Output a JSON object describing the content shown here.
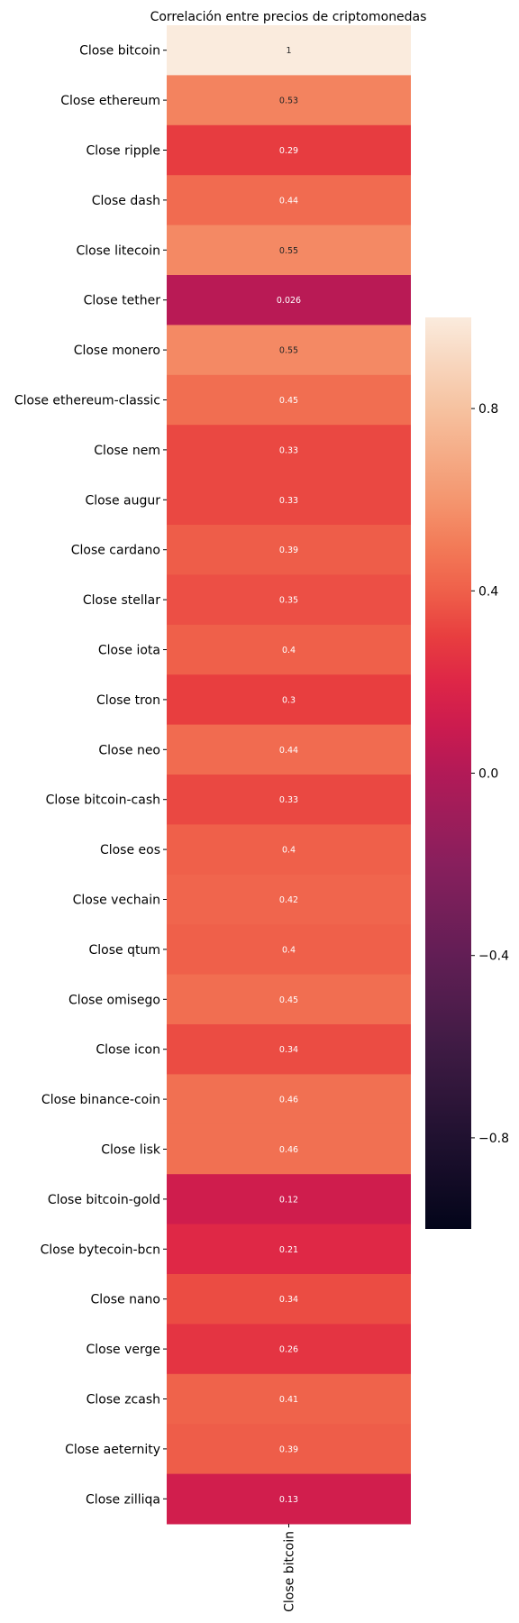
{
  "chart_data": {
    "type": "heatmap",
    "title": "Correlación entre precios de criptomonedas",
    "x_categories": [
      "Close bitcoin"
    ],
    "y_categories": [
      "Close bitcoin",
      "Close ethereum",
      "Close ripple",
      "Close dash",
      "Close litecoin",
      "Close tether",
      "Close monero",
      "Close ethereum-classic",
      "Close nem",
      "Close augur",
      "Close cardano",
      "Close stellar",
      "Close iota",
      "Close tron",
      "Close neo",
      "Close bitcoin-cash",
      "Close eos",
      "Close vechain",
      "Close qtum",
      "Close omisego",
      "Close icon",
      "Close binance-coin",
      "Close lisk",
      "Close bitcoin-gold",
      "Close bytecoin-bcn",
      "Close nano",
      "Close verge",
      "Close zcash",
      "Close aeternity",
      "Close zilliqa"
    ],
    "values": [
      1,
      0.53,
      0.29,
      0.44,
      0.55,
      0.026,
      0.55,
      0.45,
      0.33,
      0.33,
      0.39,
      0.35,
      0.4,
      0.3,
      0.44,
      0.33,
      0.4,
      0.42,
      0.4,
      0.45,
      0.34,
      0.46,
      0.46,
      0.12,
      0.21,
      0.34,
      0.26,
      0.41,
      0.39,
      0.13
    ],
    "annotations": [
      "1",
      "0.53",
      "0.29",
      "0.44",
      "0.55",
      "0.026",
      "0.55",
      "0.45",
      "0.33",
      "0.33",
      "0.39",
      "0.35",
      "0.4",
      "0.3",
      "0.44",
      "0.33",
      "0.4",
      "0.42",
      "0.4",
      "0.45",
      "0.34",
      "0.46",
      "0.46",
      "0.12",
      "0.21",
      "0.34",
      "0.26",
      "0.41",
      "0.39",
      "0.13"
    ],
    "colormap": "rocket",
    "vmin": -1,
    "vmax": 1,
    "colorbar": {
      "ticks": [
        0.8,
        0.4,
        0.0,
        -0.4,
        -0.8
      ],
      "tick_labels": [
        "0.8",
        "0.4",
        "0.0",
        "−0.4",
        "−0.8"
      ],
      "placement": "right"
    }
  }
}
